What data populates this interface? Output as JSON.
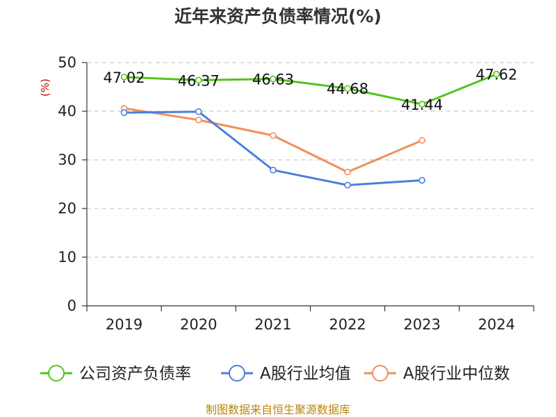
{
  "chart_data": {
    "type": "line",
    "title": "近年来资产负债率情况(%)",
    "ylabel": "(%)",
    "xlabel": "",
    "categories": [
      "2019",
      "2020",
      "2021",
      "2022",
      "2023",
      "2024"
    ],
    "ylim": [
      0,
      50
    ],
    "yticks": [
      0,
      10,
      20,
      30,
      40,
      50
    ],
    "grid": true,
    "legend_position": "bottom",
    "series": [
      {
        "name": "公司资产负债率",
        "color": "#52c41a",
        "values": [
          47.02,
          46.37,
          46.63,
          44.68,
          41.44,
          47.62
        ],
        "labels": [
          "47.02",
          "46.37",
          "46.63",
          "44.68",
          "41.44",
          "47.62"
        ]
      },
      {
        "name": "A股行业均值",
        "color": "#4a7fdb",
        "values": [
          39.7,
          39.9,
          27.9,
          24.8,
          25.8,
          null
        ]
      },
      {
        "name": "A股行业中位数",
        "color": "#f28e5a",
        "values": [
          40.6,
          38.2,
          35.0,
          27.5,
          34.0,
          null
        ]
      }
    ],
    "source": "制图数据来自恒生聚源数据库"
  }
}
